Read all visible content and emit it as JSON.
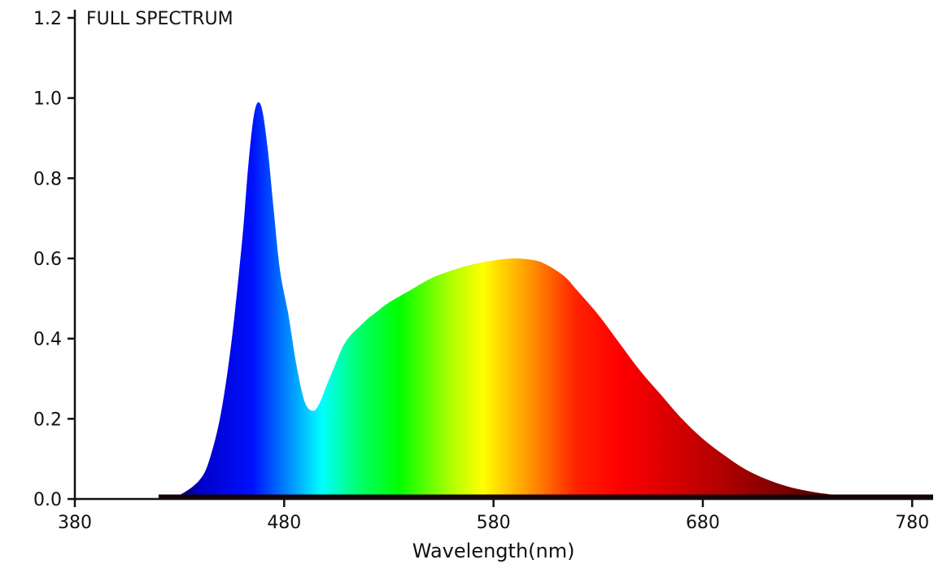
{
  "chart_data": {
    "type": "area",
    "title": "FULL SPECTRUM",
    "xlabel": "Wavelength(nm)",
    "ylabel": "",
    "xlim": [
      380,
      790
    ],
    "ylim": [
      0,
      1.2
    ],
    "x_ticks": [
      380,
      480,
      580,
      680,
      780
    ],
    "x_tick_labels": [
      "380",
      "480",
      "580",
      "680",
      "780"
    ],
    "y_ticks": [
      0,
      0.2,
      0.4,
      0.6,
      0.8,
      1.0,
      1.2
    ],
    "y_tick_labels": [
      "0.0",
      "0.2",
      "0.4",
      "0.6",
      "0.8",
      "1.0",
      "1.2"
    ],
    "grid": false,
    "series": [
      {
        "x": [
          420,
          430,
          440,
          445,
          450,
          455,
          460,
          463,
          466,
          469,
          472,
          475,
          478,
          482,
          486,
          490,
          494,
          497,
          500,
          504,
          508,
          512,
          516,
          520,
          525,
          530,
          540,
          550,
          560,
          570,
          580,
          590,
          600,
          605,
          610,
          615,
          620,
          630,
          640,
          650,
          660,
          670,
          680,
          690,
          700,
          710,
          720,
          730,
          740,
          750,
          760,
          770,
          780,
          790
        ],
        "y": [
          0.0,
          0.01,
          0.05,
          0.11,
          0.22,
          0.4,
          0.65,
          0.84,
          0.97,
          0.98,
          0.88,
          0.72,
          0.57,
          0.46,
          0.33,
          0.24,
          0.22,
          0.24,
          0.28,
          0.33,
          0.38,
          0.41,
          0.43,
          0.45,
          0.47,
          0.49,
          0.52,
          0.55,
          0.57,
          0.585,
          0.595,
          0.6,
          0.595,
          0.585,
          0.57,
          0.55,
          0.52,
          0.46,
          0.39,
          0.32,
          0.26,
          0.2,
          0.15,
          0.11,
          0.075,
          0.05,
          0.032,
          0.02,
          0.012,
          0.007,
          0.004,
          0.002,
          0.001,
          0.0
        ]
      }
    ],
    "fill_colors": [
      {
        "x": 420,
        "color": "#1a0010"
      },
      {
        "x": 440,
        "color": "#0000c8"
      },
      {
        "x": 465,
        "color": "#0010ff"
      },
      {
        "x": 485,
        "color": "#00a0ff"
      },
      {
        "x": 498,
        "color": "#00ffff"
      },
      {
        "x": 515,
        "color": "#00ff70"
      },
      {
        "x": 535,
        "color": "#00ff00"
      },
      {
        "x": 560,
        "color": "#b0ff00"
      },
      {
        "x": 575,
        "color": "#ffff00"
      },
      {
        "x": 595,
        "color": "#ffa000"
      },
      {
        "x": 620,
        "color": "#ff2000"
      },
      {
        "x": 640,
        "color": "#ff0000"
      },
      {
        "x": 690,
        "color": "#b00000"
      },
      {
        "x": 740,
        "color": "#500000"
      },
      {
        "x": 790,
        "color": "#1a0000"
      }
    ],
    "baseline_color": "#1a0000"
  }
}
